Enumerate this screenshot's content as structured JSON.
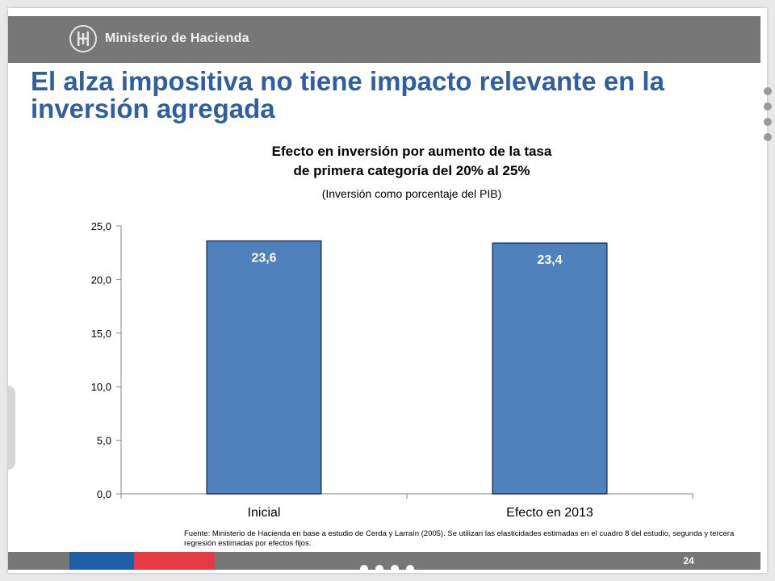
{
  "header": {
    "org_name": "Ministerio de Hacienda"
  },
  "slide": {
    "title": "El alza impositiva no tiene impacto relevante en la inversión agregada",
    "page_number": "24",
    "source_note": "Fuente: Ministerio de Hacienda en base  a estudio de Cerda y Larraín (2005). Se utilizan las elasticidades estimadas en el cuadro 8 del estudio, segunda y tercera regresión estimadas por efectos fijos."
  },
  "chart_data": {
    "type": "bar",
    "title_line1": "Efecto en inversión por aumento de la tasa",
    "title_line2": "de primera categoría del 20% al 25%",
    "subtitle": "(Inversión como porcentaje del PIB)",
    "categories": [
      "Inicial",
      "Efecto en 2013"
    ],
    "values": [
      23.6,
      23.4
    ],
    "data_labels": [
      "23,6",
      "23,4"
    ],
    "ylim": [
      0,
      25
    ],
    "yticks": [
      "0,0",
      "5,0",
      "10,0",
      "15,0",
      "20,0",
      "25,0"
    ],
    "xlabel": "",
    "ylabel": "",
    "grid": false,
    "legend": "none",
    "bar_color": "#4f81bd",
    "bar_edge_color": "#1f3864"
  },
  "colors": {
    "title": "#2f5f9e",
    "band": "#777777",
    "accent_blue": "#1f5fa8",
    "accent_red": "#e63b45"
  }
}
